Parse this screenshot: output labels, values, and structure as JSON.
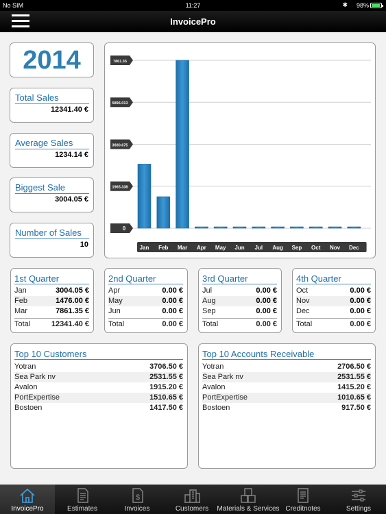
{
  "status": {
    "carrier": "No SIM",
    "time": "11:27",
    "battery": "98%"
  },
  "nav": {
    "title": "InvoicePro"
  },
  "year": "2014",
  "stats": [
    {
      "label": "Total Sales",
      "value": "12341.40 €"
    },
    {
      "label": "Average Sales",
      "value": "1234.14 €"
    },
    {
      "label": "Biggest Sale",
      "value": "3004.05 €"
    },
    {
      "label": "Number of Sales",
      "value": "10"
    }
  ],
  "chart_data": {
    "type": "bar",
    "categories": [
      "Jan",
      "Feb",
      "Mar",
      "Apr",
      "May",
      "Jun",
      "Jul",
      "Aug",
      "Sep",
      "Oct",
      "Nov",
      "Dec"
    ],
    "values": [
      3004.05,
      1476.0,
      7861.35,
      0,
      0,
      0,
      0,
      0,
      0,
      0,
      0,
      0
    ],
    "yticks": [
      "0",
      "1965.338",
      "3930.675",
      "5896.013",
      "7861.35"
    ],
    "ylim": [
      0,
      7861.35
    ],
    "grid": true,
    "colors": {
      "bar": "#3a97d3",
      "bar_dark": "#1e6ea9",
      "label_bg": "#3a3a3a"
    }
  },
  "quarters": [
    {
      "title": "1st Quarter",
      "months": [
        {
          "m": "Jan",
          "v": "3004.05 €"
        },
        {
          "m": "Feb",
          "v": "1476.00 €"
        },
        {
          "m": "Mar",
          "v": "7861.35 €"
        }
      ],
      "total_label": "Total",
      "total": "12341.40 €"
    },
    {
      "title": "2nd Quarter",
      "months": [
        {
          "m": "Apr",
          "v": "0.00 €"
        },
        {
          "m": "May",
          "v": "0.00 €"
        },
        {
          "m": "Jun",
          "v": "0.00 €"
        }
      ],
      "total_label": "Total",
      "total": "0.00 €"
    },
    {
      "title": "3rd Quarter",
      "months": [
        {
          "m": "Jul",
          "v": "0.00 €"
        },
        {
          "m": "Aug",
          "v": "0.00 €"
        },
        {
          "m": "Sep",
          "v": "0.00 €"
        }
      ],
      "total_label": "Total",
      "total": "0.00 €"
    },
    {
      "title": "4th Quarter",
      "months": [
        {
          "m": "Oct",
          "v": "0.00 €"
        },
        {
          "m": "Nov",
          "v": "0.00 €"
        },
        {
          "m": "Dec",
          "v": "0.00 €"
        }
      ],
      "total_label": "Total",
      "total": "0.00 €"
    }
  ],
  "top_customers": {
    "title": "Top 10 Customers",
    "rows": [
      {
        "name": "Yotran",
        "value": "3706.50 €"
      },
      {
        "name": "Sea Park nv",
        "value": "2531.55 €"
      },
      {
        "name": "Avalon",
        "value": "1915.20 €"
      },
      {
        "name": "PortExpertise",
        "value": "1510.65 €"
      },
      {
        "name": "Bostoen",
        "value": "1417.50 €"
      }
    ]
  },
  "top_receivable": {
    "title": "Top 10 Accounts Receivable",
    "rows": [
      {
        "name": "Yotran",
        "value": "2706.50 €"
      },
      {
        "name": "Sea Park nv",
        "value": "2531.55 €"
      },
      {
        "name": "Avalon",
        "value": "1415.20 €"
      },
      {
        "name": "PortExpertise",
        "value": "1010.65 €"
      },
      {
        "name": "Bostoen",
        "value": "917.50 €"
      }
    ]
  },
  "tabs": [
    {
      "label": "InvoicePro",
      "icon": "house-icon",
      "active": true
    },
    {
      "label": "Estimates",
      "icon": "estimate-document-icon",
      "active": false
    },
    {
      "label": "Invoices",
      "icon": "invoice-dollar-icon",
      "active": false
    },
    {
      "label": "Customers",
      "icon": "buildings-icon",
      "active": false
    },
    {
      "label": "Materials & Services",
      "icon": "boxes-icon",
      "active": false
    },
    {
      "label": "Creditnotes",
      "icon": "creditnote-document-icon",
      "active": false
    },
    {
      "label": "Settings",
      "icon": "sliders-icon",
      "active": false
    }
  ]
}
